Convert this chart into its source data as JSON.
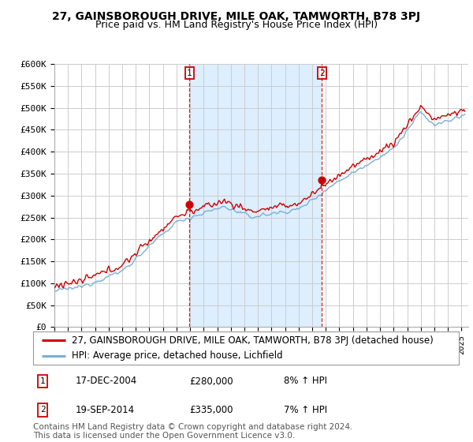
{
  "title": "27, GAINSBOROUGH DRIVE, MILE OAK, TAMWORTH, B78 3PJ",
  "subtitle": "Price paid vs. HM Land Registry's House Price Index (HPI)",
  "ylim": [
    0,
    600000
  ],
  "yticks": [
    0,
    50000,
    100000,
    150000,
    200000,
    250000,
    300000,
    350000,
    400000,
    450000,
    500000,
    550000,
    600000
  ],
  "ytick_labels": [
    "£0",
    "£50K",
    "£100K",
    "£150K",
    "£200K",
    "£250K",
    "£300K",
    "£350K",
    "£400K",
    "£450K",
    "£500K",
    "£550K",
    "£600K"
  ],
  "xlim_start": 1995.0,
  "xlim_end": 2025.5,
  "vline1_x": 2004.96,
  "vline2_x": 2014.72,
  "sale1_y": 280000,
  "sale2_y": 335000,
  "transaction1_date": "17-DEC-2004",
  "transaction1_price": "£280,000",
  "transaction1_note": "8% ↑ HPI",
  "transaction2_date": "19-SEP-2014",
  "transaction2_price": "£335,000",
  "transaction2_note": "7% ↑ HPI",
  "legend_line1": "27, GAINSBOROUGH DRIVE, MILE OAK, TAMWORTH, B78 3PJ (detached house)",
  "legend_line2": "HPI: Average price, detached house, Lichfield",
  "footer": "Contains HM Land Registry data © Crown copyright and database right 2024.\nThis data is licensed under the Open Government Licence v3.0.",
  "red_color": "#cc0000",
  "blue_color": "#7aafd4",
  "shade_color": "#ddeeff",
  "bg_color": "#ffffff",
  "grid_color": "#cccccc",
  "title_fontsize": 10,
  "subtitle_fontsize": 9,
  "tick_fontsize": 8,
  "legend_fontsize": 8.5,
  "footer_fontsize": 7.5
}
